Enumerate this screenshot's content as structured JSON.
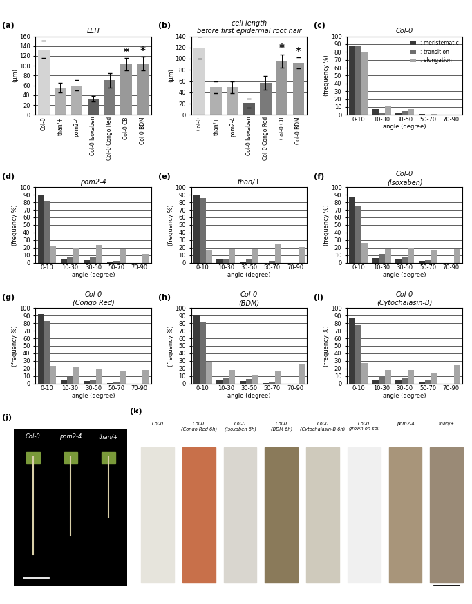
{
  "chart_data": [
    {
      "panel": "(a)",
      "type": "bar",
      "title": "LEH",
      "y_label": "(µm)",
      "categories": [
        "Col-0",
        "than/+",
        "pom2-4",
        "Col-0 Isoxaben",
        "Col-0 Congo Red",
        "Col-0 CB",
        "Col-0 BDM"
      ],
      "values": [
        133,
        55,
        60,
        33,
        70,
        103,
        105
      ],
      "error": [
        18,
        10,
        10,
        6,
        15,
        13,
        14
      ],
      "colors": [
        "#d4d4d4",
        "#b0b0b0",
        "#b0b0b0",
        "#5e5e5e",
        "#7a7a7a",
        "#999999",
        "#999999"
      ],
      "ylim": [
        0,
        160
      ],
      "yticks": [
        0,
        20,
        40,
        60,
        80,
        100,
        120,
        140,
        160
      ],
      "grid": true,
      "annotations": [
        {
          "category": "Col-0 CB",
          "text": "*"
        },
        {
          "category": "Col-0 BDM",
          "text": "*"
        }
      ]
    },
    {
      "panel": "(b)",
      "type": "bar",
      "title": "cell length\nbefore first epidermal root hair",
      "y_label": "(µm)",
      "categories": [
        "Col-0",
        "than/+",
        "pom2-4",
        "Col-0 Isoxaben",
        "Col-0 Congo Red",
        "Col-0 CB",
        "Col-0 BDM"
      ],
      "values": [
        120,
        49,
        49,
        21,
        57,
        96,
        93
      ],
      "error": [
        20,
        10,
        10,
        8,
        12,
        12,
        10
      ],
      "colors": [
        "#d4d4d4",
        "#b0b0b0",
        "#b0b0b0",
        "#5e5e5e",
        "#7a7a7a",
        "#999999",
        "#999999"
      ],
      "ylim": [
        0,
        140
      ],
      "yticks": [
        0,
        20,
        40,
        60,
        80,
        100,
        120,
        140
      ],
      "grid": true,
      "annotations": [
        {
          "category": "Col-0 CB",
          "text": "*"
        },
        {
          "category": "Col-0 BDM",
          "text": "*"
        }
      ]
    },
    {
      "panel": "(c)",
      "type": "bar",
      "title": "Col-0",
      "x_label": "angle (degree)",
      "y_label": "(frequency %)",
      "categories": [
        "0-10",
        "10-30",
        "30-50",
        "50-70",
        "70-90"
      ],
      "series": [
        {
          "name": ": meristematic",
          "color": "#3a3a3a",
          "values": [
            88,
            7,
            2,
            1,
            0
          ]
        },
        {
          "name": ": transition",
          "color": "#6e6e6e",
          "values": [
            87,
            3,
            5,
            0,
            0
          ]
        },
        {
          "name": ": elongation",
          "color": "#a6a6a6",
          "values": [
            79,
            11,
            7,
            1,
            0
          ]
        }
      ],
      "ylim": [
        0,
        100
      ],
      "yticks": [
        0,
        10,
        20,
        30,
        40,
        50,
        60,
        70,
        80,
        90,
        100
      ],
      "grid": true,
      "legend": "upper right"
    },
    {
      "panel": "(d)",
      "type": "bar",
      "title": "pom2-4",
      "x_label": "angle (degree)",
      "y_label": "(frequency %)",
      "categories": [
        "0-10",
        "10-30",
        "30-50",
        "50-70",
        "70-90"
      ],
      "series": [
        {
          "color": "#3a3a3a",
          "values": [
            90,
            5,
            4,
            1,
            0
          ]
        },
        {
          "color": "#6e6e6e",
          "values": [
            82,
            7,
            7,
            2,
            0
          ]
        },
        {
          "color": "#a6a6a6",
          "values": [
            22,
            20,
            23,
            19,
            12
          ]
        }
      ],
      "ylim": [
        0,
        100
      ],
      "yticks": [
        0,
        10,
        20,
        30,
        40,
        50,
        60,
        70,
        80,
        90,
        100
      ],
      "grid": true
    },
    {
      "panel": "(e)",
      "type": "bar",
      "title": "than/+",
      "x_label": "angle (degree)",
      "y_label": "(frequency %)",
      "categories": [
        "0-10",
        "10-30",
        "30-50",
        "50-70",
        "70-90"
      ],
      "series": [
        {
          "color": "#3a3a3a",
          "values": [
            89,
            5,
            1,
            0,
            0
          ]
        },
        {
          "color": "#6e6e6e",
          "values": [
            86,
            5,
            5,
            2,
            0
          ]
        },
        {
          "color": "#a6a6a6",
          "values": [
            17,
            18,
            18,
            24,
            21
          ]
        }
      ],
      "ylim": [
        0,
        100
      ],
      "yticks": [
        0,
        10,
        20,
        30,
        40,
        50,
        60,
        70,
        80,
        90,
        100
      ],
      "grid": true
    },
    {
      "panel": "(f)",
      "type": "bar",
      "title": "Col-0\n(Isoxaben)",
      "x_label": "angle (degree)",
      "y_label": "(frequency %)",
      "categories": [
        "0-10",
        "10-30",
        "30-50",
        "50-70",
        "70-90"
      ],
      "series": [
        {
          "color": "#3a3a3a",
          "values": [
            87,
            6,
            5,
            2,
            0
          ]
        },
        {
          "color": "#6e6e6e",
          "values": [
            75,
            12,
            7,
            4,
            0
          ]
        },
        {
          "color": "#a6a6a6",
          "values": [
            26,
            19,
            20,
            17,
            18
          ]
        }
      ],
      "ylim": [
        0,
        100
      ],
      "yticks": [
        0,
        10,
        20,
        30,
        40,
        50,
        60,
        70,
        80,
        90,
        100
      ],
      "grid": true
    },
    {
      "panel": "(g)",
      "type": "bar",
      "title": "Col-0\n(Congo Red)",
      "x_label": "angle (degree)",
      "y_label": "(frequency %)",
      "categories": [
        "0-10",
        "10-30",
        "30-50",
        "50-70",
        "70-90"
      ],
      "series": [
        {
          "color": "#3a3a3a",
          "values": [
            92,
            4,
            3,
            1,
            0
          ]
        },
        {
          "color": "#6e6e6e",
          "values": [
            83,
            9,
            5,
            2,
            0
          ]
        },
        {
          "color": "#a6a6a6",
          "values": [
            23,
            22,
            19,
            16,
            18
          ]
        }
      ],
      "ylim": [
        0,
        100
      ],
      "yticks": [
        0,
        10,
        20,
        30,
        40,
        50,
        60,
        70,
        80,
        90,
        100
      ],
      "grid": true
    },
    {
      "panel": "(h)",
      "type": "bar",
      "title": "Col-0\n(BDM)",
      "x_label": "angle (degree)",
      "y_label": "(frequency %)",
      "categories": [
        "0-10",
        "10-30",
        "30-50",
        "50-70",
        "70-90"
      ],
      "series": [
        {
          "color": "#3a3a3a",
          "values": [
            91,
            4,
            3,
            1,
            0
          ]
        },
        {
          "color": "#6e6e6e",
          "values": [
            82,
            7,
            6,
            2,
            0
          ]
        },
        {
          "color": "#a6a6a6",
          "values": [
            28,
            18,
            12,
            16,
            26
          ]
        }
      ],
      "ylim": [
        0,
        100
      ],
      "yticks": [
        0,
        10,
        20,
        30,
        40,
        50,
        60,
        70,
        80,
        90,
        100
      ],
      "grid": true
    },
    {
      "panel": "(i)",
      "type": "bar",
      "title": "Col-0\n(Cytochalasin-B)",
      "x_label": "angle (degree)",
      "y_label": "(frequency %)",
      "categories": [
        "0-10",
        "10-30",
        "30-50",
        "50-70",
        "70-90"
      ],
      "series": [
        {
          "color": "#3a3a3a",
          "values": [
            87,
            5,
            4,
            2,
            0
          ]
        },
        {
          "color": "#6e6e6e",
          "values": [
            77,
            11,
            7,
            4,
            0
          ]
        },
        {
          "color": "#a6a6a6",
          "values": [
            27,
            18,
            18,
            14,
            24
          ]
        }
      ],
      "ylim": [
        0,
        100
      ],
      "yticks": [
        0,
        10,
        20,
        30,
        40,
        50,
        60,
        70,
        80,
        90,
        100
      ],
      "grid": true
    }
  ],
  "images": [
    {
      "panel": "(j)",
      "labels": [
        [
          "Col-0"
        ],
        [
          "pom2-4"
        ],
        [
          "than/+"
        ]
      ]
    },
    {
      "panel": "(k)",
      "labels": [
        [
          "Col-0"
        ],
        [
          "Col-0",
          "(Congo Red 6h)"
        ],
        [
          "Col-0",
          "(Isoxaben 6h)"
        ],
        [
          "Col-0",
          "(BDM 6h)"
        ],
        [
          "Col-0",
          "(Cytochalasin-B 6h)"
        ],
        [
          "Col-0",
          "grown on soil"
        ],
        [
          "pom2-4"
        ],
        [
          "than/+"
        ]
      ]
    }
  ]
}
